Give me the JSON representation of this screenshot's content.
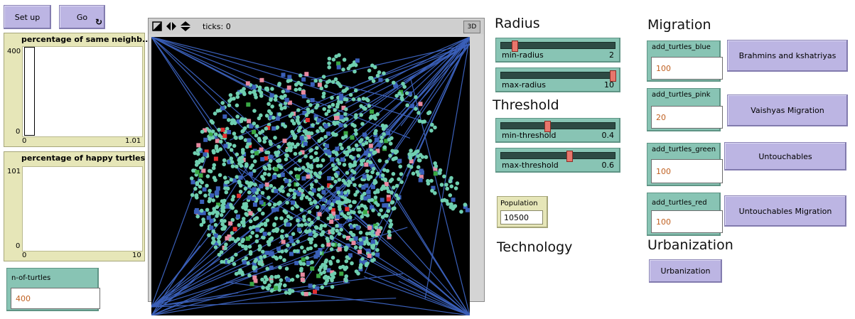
{
  "buttons": {
    "setup": "Set up",
    "go": "Go",
    "go_forever_icon": "forever-icon",
    "brahmins": "Brahmins and kshatriyas",
    "vaishyas": "Vaishyas  Migration",
    "untouchables": "Untouchables",
    "untouchables_migration": "Untouchables Migration",
    "urbanization": "Urbanization"
  },
  "plots": {
    "same_neighbors": {
      "title": "percentage of same neighb...",
      "ymax": "400",
      "ymin": "0",
      "xmin": "0",
      "xmax": "1.01"
    },
    "happy_turtles": {
      "title": "percentage of happy turtles",
      "ymax": "101",
      "ymin": "0",
      "xmin": "0",
      "xmax": "10"
    }
  },
  "n_of_turtles": {
    "label": "n-of-turtles",
    "value": "400"
  },
  "view": {
    "ticks": "ticks: 0",
    "three_d": "3D"
  },
  "headings": {
    "radius": "Radius",
    "threshold": "Threshold",
    "technology": "Technology",
    "migration": "Migration",
    "urbanization": "Urbanization"
  },
  "sliders": {
    "min_radius": {
      "label": "min-radius",
      "value": "2",
      "fraction": 0.1
    },
    "max_radius": {
      "label": "max-radius",
      "value": "10",
      "fraction": 1.0
    },
    "min_threshold": {
      "label": "min-threshold",
      "value": "0.4",
      "fraction": 0.4
    },
    "max_threshold": {
      "label": "max-threshold",
      "value": "0.6",
      "fraction": 0.6
    }
  },
  "population": {
    "label": "Population",
    "value": "10500"
  },
  "migration_inputs": {
    "blue": {
      "label": "add_turtles_blue",
      "value": "100"
    },
    "pink": {
      "label": "add_turtles_pink",
      "value": "20"
    },
    "green": {
      "label": "add_turtles_green",
      "value": "100"
    },
    "red": {
      "label": "add_turtles_red",
      "value": "100"
    }
  },
  "colors": {
    "button": "#bcb5e3",
    "input": "#88c4b4",
    "plot": "#e6e6b8",
    "view_bg": "#000000",
    "turtle_teal": "#6fcfb0",
    "turtle_blue": "#3a5fb8",
    "turtle_pink": "#e88aa0",
    "turtle_green": "#3aa845",
    "turtle_red": "#e03030",
    "link_blue": "#3a5fb8"
  }
}
